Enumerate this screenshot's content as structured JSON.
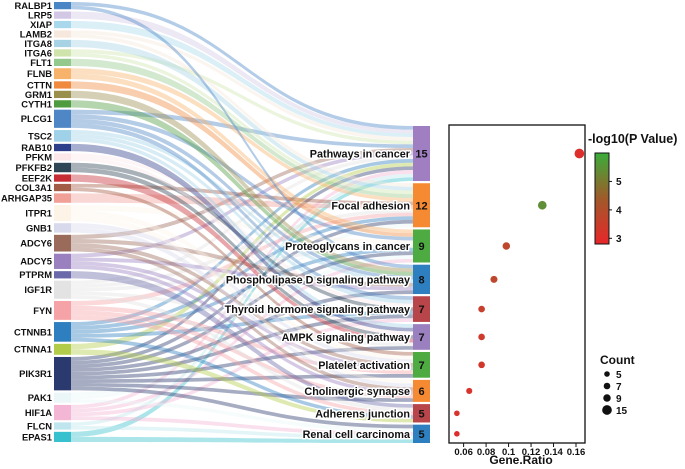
{
  "chart_data": [
    {
      "type": "sankey",
      "genes": [
        {
          "name": "RALBP1",
          "weight": 1,
          "color": "#4a86c5"
        },
        {
          "name": "LRP5",
          "weight": 1,
          "color": "#d2c7e4"
        },
        {
          "name": "XIAP",
          "weight": 1,
          "color": "#a9d8ec"
        },
        {
          "name": "LAMB2",
          "weight": 1,
          "color": "#f6e8dc"
        },
        {
          "name": "ITGA8",
          "weight": 1,
          "color": "#a7d3e4"
        },
        {
          "name": "ITGA6",
          "weight": 1,
          "color": "#cfe4ad"
        },
        {
          "name": "FLT1",
          "weight": 1,
          "color": "#93c98d"
        },
        {
          "name": "FLNB",
          "weight": 1.5,
          "color": "#f7b26c"
        },
        {
          "name": "CTTN",
          "weight": 1,
          "color": "#ef8a3f"
        },
        {
          "name": "GRM1",
          "weight": 1,
          "color": "#9b8f4e"
        },
        {
          "name": "CYTH1",
          "weight": 1,
          "color": "#4f9b3f"
        },
        {
          "name": "PLCG1",
          "weight": 2.5,
          "color": "#4f86c6"
        },
        {
          "name": "TSC2",
          "weight": 1.6,
          "color": "#9fd2e8"
        },
        {
          "name": "RAB10",
          "weight": 1,
          "color": "#2d3e8a"
        },
        {
          "name": "PFKM",
          "weight": 1,
          "color": "#fbe6ea"
        },
        {
          "name": "PFKFB2",
          "weight": 1.3,
          "color": "#2f4656"
        },
        {
          "name": "EEF2K",
          "weight": 1,
          "color": "#c62d34"
        },
        {
          "name": "COL3A1",
          "weight": 1,
          "color": "#a25b45"
        },
        {
          "name": "ARHGAP35",
          "weight": 1.3,
          "color": "#f1a098"
        },
        {
          "name": "ITPR1",
          "weight": 2.2,
          "color": "#fdf3e6"
        },
        {
          "name": "GNB1",
          "weight": 1.3,
          "color": "#d9d9ec"
        },
        {
          "name": "ADCY6",
          "weight": 2.3,
          "color": "#9a6a5a"
        },
        {
          "name": "ADCY5",
          "weight": 2.1,
          "color": "#9b80c0"
        },
        {
          "name": "PTPRM",
          "weight": 1,
          "color": "#6a6aaa"
        },
        {
          "name": "IGF1R",
          "weight": 2.5,
          "color": "#e3e3e3"
        },
        {
          "name": "FYN",
          "weight": 2.6,
          "color": "#f6a3a8"
        },
        {
          "name": "CTNNB1",
          "weight": 2.7,
          "color": "#2e7fbf"
        },
        {
          "name": "CTNNA1",
          "weight": 1.5,
          "color": "#b2cc4a"
        },
        {
          "name": "PIK3R1",
          "weight": 4.6,
          "color": "#2a3a6e"
        },
        {
          "name": "PAK1",
          "weight": 1.4,
          "color": "#eaf6f7"
        },
        {
          "name": "HIF1A",
          "weight": 2.1,
          "color": "#f3b6d4"
        },
        {
          "name": "FLCN",
          "weight": 1,
          "color": "#bfe6ef"
        },
        {
          "name": "EPAS1",
          "weight": 1.4,
          "color": "#37c0ce"
        }
      ],
      "pathways": [
        {
          "name": "Pathways in cancer",
          "count": 15,
          "color": "#a07ec2"
        },
        {
          "name": "Focal adhesion",
          "count": 12,
          "color": "#f58a32"
        },
        {
          "name": "Proteoglycans in cancer",
          "count": 9,
          "color": "#4dab42"
        },
        {
          "name": "Phospholipase D signaling pathway",
          "count": 8,
          "color": "#2e7fbf"
        },
        {
          "name": "Thyroid hormone signaling pathway",
          "count": 7,
          "color": "#b7454a"
        },
        {
          "name": "AMPK signaling pathway",
          "count": 7,
          "color": "#9b80c0"
        },
        {
          "name": "Platelet activation",
          "count": 7,
          "color": "#4dab42"
        },
        {
          "name": "Cholinergic synapse",
          "count": 6,
          "color": "#f58a32"
        },
        {
          "name": "Adherens junction",
          "count": 5,
          "color": "#b7454a"
        },
        {
          "name": "Renal cell carcinoma",
          "count": 5,
          "color": "#2e7fbf"
        }
      ],
      "links": [
        [
          "RALBP1",
          "Pathways in cancer"
        ],
        [
          "LRP5",
          "Pathways in cancer"
        ],
        [
          "XIAP",
          "Pathways in cancer"
        ],
        [
          "LAMB2",
          "Pathways in cancer"
        ],
        [
          "ITGA6",
          "Pathways in cancer"
        ],
        [
          "PLCG1",
          "Pathways in cancer"
        ],
        [
          "ADCY6",
          "Pathways in cancer"
        ],
        [
          "ADCY5",
          "Pathways in cancer"
        ],
        [
          "IGF1R",
          "Pathways in cancer"
        ],
        [
          "CTNNB1",
          "Pathways in cancer"
        ],
        [
          "CTNNA1",
          "Pathways in cancer"
        ],
        [
          "PIK3R1",
          "Pathways in cancer"
        ],
        [
          "HIF1A",
          "Pathways in cancer"
        ],
        [
          "FLCN",
          "Pathways in cancer"
        ],
        [
          "EPAS1",
          "Pathways in cancer"
        ],
        [
          "LAMB2",
          "Focal adhesion"
        ],
        [
          "ITGA8",
          "Focal adhesion"
        ],
        [
          "ITGA6",
          "Focal adhesion"
        ],
        [
          "FLT1",
          "Focal adhesion"
        ],
        [
          "FLNB",
          "Focal adhesion"
        ],
        [
          "ARHGAP35",
          "Focal adhesion"
        ],
        [
          "COL3A1",
          "Focal adhesion"
        ],
        [
          "IGF1R",
          "Focal adhesion"
        ],
        [
          "FYN",
          "Focal adhesion"
        ],
        [
          "CTNNB1",
          "Focal adhesion"
        ],
        [
          "PIK3R1",
          "Focal adhesion"
        ],
        [
          "PAK1",
          "Focal adhesion"
        ],
        [
          "FLNB",
          "Proteoglycans in cancer"
        ],
        [
          "CTTN",
          "Proteoglycans in cancer"
        ],
        [
          "PLCG1",
          "Proteoglycans in cancer"
        ],
        [
          "ITPR1",
          "Proteoglycans in cancer"
        ],
        [
          "IGF1R",
          "Proteoglycans in cancer"
        ],
        [
          "CTNNB1",
          "Proteoglycans in cancer"
        ],
        [
          "PIK3R1",
          "Proteoglycans in cancer"
        ],
        [
          "PAK1",
          "Proteoglycans in cancer"
        ],
        [
          "HIF1A",
          "Proteoglycans in cancer"
        ],
        [
          "RALBP1",
          "Phospholipase D signaling pathway"
        ],
        [
          "GRM1",
          "Phospholipase D signaling pathway"
        ],
        [
          "CYTH1",
          "Phospholipase D signaling pathway"
        ],
        [
          "PLCG1",
          "Phospholipase D signaling pathway"
        ],
        [
          "TSC2",
          "Phospholipase D signaling pathway"
        ],
        [
          "ADCY6",
          "Phospholipase D signaling pathway"
        ],
        [
          "ADCY5",
          "Phospholipase D signaling pathway"
        ],
        [
          "PIK3R1",
          "Phospholipase D signaling pathway"
        ],
        [
          "TSC2",
          "Thyroid hormone signaling pathway"
        ],
        [
          "PFKM",
          "Thyroid hormone signaling pathway"
        ],
        [
          "PFKFB2",
          "Thyroid hormone signaling pathway"
        ],
        [
          "PLCG1",
          "Thyroid hormone signaling pathway"
        ],
        [
          "CTNNB1",
          "Thyroid hormone signaling pathway"
        ],
        [
          "PIK3R1",
          "Thyroid hormone signaling pathway"
        ],
        [
          "HIF1A",
          "Thyroid hormone signaling pathway"
        ],
        [
          "RAB10",
          "AMPK signaling pathway"
        ],
        [
          "PFKM",
          "AMPK signaling pathway"
        ],
        [
          "PFKFB2",
          "AMPK signaling pathway"
        ],
        [
          "EEF2K",
          "AMPK signaling pathway"
        ],
        [
          "TSC2",
          "AMPK signaling pathway"
        ],
        [
          "IGF1R",
          "AMPK signaling pathway"
        ],
        [
          "PIK3R1",
          "AMPK signaling pathway"
        ],
        [
          "COL3A1",
          "Platelet activation"
        ],
        [
          "ITPR1",
          "Platelet activation"
        ],
        [
          "GNB1",
          "Platelet activation"
        ],
        [
          "ADCY6",
          "Platelet activation"
        ],
        [
          "ADCY5",
          "Platelet activation"
        ],
        [
          "FYN",
          "Platelet activation"
        ],
        [
          "PIK3R1",
          "Platelet activation"
        ],
        [
          "ITPR1",
          "Cholinergic synapse"
        ],
        [
          "GNB1",
          "Cholinergic synapse"
        ],
        [
          "ADCY6",
          "Cholinergic synapse"
        ],
        [
          "ADCY5",
          "Cholinergic synapse"
        ],
        [
          "FYN",
          "Cholinergic synapse"
        ],
        [
          "PIK3R1",
          "Cholinergic synapse"
        ],
        [
          "PTPRM",
          "Adherens junction"
        ],
        [
          "IGF1R",
          "Adherens junction"
        ],
        [
          "FYN",
          "Adherens junction"
        ],
        [
          "CTNNB1",
          "Adherens junction"
        ],
        [
          "CTNNA1",
          "Adherens junction"
        ],
        [
          "PIK3R1",
          "Renal cell carcinoma"
        ],
        [
          "PAK1",
          "Renal cell carcinoma"
        ],
        [
          "HIF1A",
          "Renal cell carcinoma"
        ],
        [
          "FLCN",
          "Renal cell carcinoma"
        ],
        [
          "EPAS1",
          "Renal cell carcinoma"
        ]
      ]
    },
    {
      "type": "scatter",
      "xlabel": "Gene.Ratio",
      "xticks": [
        0.06,
        0.08,
        0.1,
        0.12,
        0.14,
        0.16
      ],
      "xtick_labels": [
        "0.06",
        "0.08",
        "0.1",
        "0.12",
        "0.14",
        "0.16"
      ],
      "xlim": [
        0.047,
        0.168
      ],
      "points": [
        {
          "pathway": "Pathways in cancer",
          "gene_ratio": 0.163,
          "count": 15,
          "neg_log10_p": 3.0
        },
        {
          "pathway": "Focal adhesion",
          "gene_ratio": 0.13,
          "count": 12,
          "neg_log10_p": 5.3
        },
        {
          "pathway": "Proteoglycans in cancer",
          "gene_ratio": 0.098,
          "count": 9,
          "neg_log10_p": 3.6
        },
        {
          "pathway": "Phospholipase D signaling pathway",
          "gene_ratio": 0.087,
          "count": 8,
          "neg_log10_p": 3.6
        },
        {
          "pathway": "Thyroid hormone signaling pathway",
          "gene_ratio": 0.076,
          "count": 7,
          "neg_log10_p": 3.4
        },
        {
          "pathway": "AMPK signaling pathway",
          "gene_ratio": 0.076,
          "count": 7,
          "neg_log10_p": 3.3
        },
        {
          "pathway": "Platelet activation",
          "gene_ratio": 0.076,
          "count": 7,
          "neg_log10_p": 3.2
        },
        {
          "pathway": "Cholinergic synapse",
          "gene_ratio": 0.065,
          "count": 6,
          "neg_log10_p": 3.1
        },
        {
          "pathway": "Adherens junction",
          "gene_ratio": 0.054,
          "count": 5,
          "neg_log10_p": 3.1
        },
        {
          "pathway": "Renal cell carcinoma",
          "gene_ratio": 0.054,
          "count": 5,
          "neg_log10_p": 3.0
        }
      ],
      "color_legend": {
        "title": "-log10(P Value)",
        "min": 2.8,
        "max": 6.0,
        "ticks": [
          3,
          4,
          5
        ],
        "tick_labels": [
          "3",
          "4",
          "5"
        ],
        "low_color": "#e8262a",
        "high_color": "#3aad3a"
      },
      "size_legend": {
        "title": "Count",
        "values": [
          5,
          7,
          9,
          15
        ],
        "labels": [
          "5",
          "7",
          "9",
          "15"
        ]
      }
    }
  ]
}
